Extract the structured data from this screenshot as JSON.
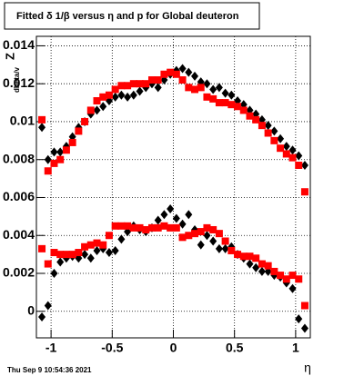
{
  "chart_data": {
    "type": "scatter",
    "title": "Fitted δ 1/β versus η and p for Global deuteron",
    "x_label": "η",
    "y_label": "Z",
    "y_label_sub": "dbeta/v",
    "footer": "Thu Sep  9 10:54:36 2021",
    "grid": true,
    "xlim": [
      -1.12,
      1.12
    ],
    "ylim": [
      -0.0014,
      0.0145
    ],
    "xticks": [
      -1,
      -0.5,
      0,
      0.5,
      1
    ],
    "yticks": [
      0,
      0.002,
      0.004,
      0.006,
      0.008,
      0.01,
      0.012,
      0.014
    ],
    "x": [
      -1.075,
      -1.025,
      -0.975,
      -0.925,
      -0.875,
      -0.825,
      -0.775,
      -0.725,
      -0.675,
      -0.625,
      -0.575,
      -0.525,
      -0.475,
      -0.425,
      -0.375,
      -0.325,
      -0.275,
      -0.225,
      -0.175,
      -0.125,
      -0.075,
      -0.025,
      0.025,
      0.075,
      0.125,
      0.175,
      0.225,
      0.275,
      0.325,
      0.375,
      0.425,
      0.475,
      0.525,
      0.575,
      0.625,
      0.675,
      0.725,
      0.775,
      0.825,
      0.875,
      0.925,
      0.975,
      1.025,
      1.075
    ],
    "series": [
      {
        "color": "#000000",
        "marker": "diamond",
        "values": [
          0.0097,
          0.008,
          0.0084,
          0.0084,
          0.0087,
          0.0092,
          0.0097,
          0.01,
          0.0104,
          0.0106,
          0.0108,
          0.0111,
          0.0113,
          0.0114,
          0.0113,
          0.0114,
          0.0116,
          0.0118,
          0.012,
          0.0118,
          0.0122,
          0.0125,
          0.0127,
          0.0128,
          0.0126,
          0.0124,
          0.0121,
          0.012,
          0.0117,
          0.0118,
          0.0115,
          0.0114,
          0.0111,
          0.0109,
          0.0106,
          0.0104,
          0.0101,
          0.0098,
          0.0095,
          0.0091,
          0.0087,
          0.0085,
          0.0082,
          0.0077
        ]
      },
      {
        "color": "#ff0000",
        "marker": "square",
        "values": [
          0.0101,
          0.0074,
          0.0078,
          0.008,
          0.0085,
          0.0089,
          0.0095,
          0.01,
          0.0106,
          0.0111,
          0.0113,
          0.0114,
          0.0117,
          0.0119,
          0.0119,
          0.012,
          0.012,
          0.012,
          0.0122,
          0.0122,
          0.0125,
          0.0126,
          0.0125,
          0.0122,
          0.0118,
          0.0117,
          0.0118,
          0.0113,
          0.0112,
          0.011,
          0.011,
          0.0109,
          0.0108,
          0.0106,
          0.0103,
          0.0101,
          0.0098,
          0.0094,
          0.009,
          0.0086,
          0.0083,
          0.0081,
          0.0077,
          0.0063
        ]
      },
      {
        "color": "#000000",
        "marker": "diamond",
        "values": [
          -0.0003,
          0.0003,
          0.002,
          0.0026,
          0.0028,
          0.0029,
          0.0028,
          0.003,
          0.0028,
          0.0032,
          0.0033,
          0.0031,
          0.0032,
          0.0038,
          0.0042,
          0.0045,
          0.0043,
          0.0042,
          0.0044,
          0.0048,
          0.0051,
          0.0054,
          0.0049,
          0.0046,
          0.0051,
          0.0043,
          0.0035,
          0.004,
          0.0037,
          0.0033,
          0.0033,
          0.0034,
          0.003,
          0.0028,
          0.0025,
          0.0023,
          0.0021,
          0.0021,
          0.0019,
          0.0018,
          0.0015,
          0.0012,
          -0.0004,
          -0.0009
        ]
      },
      {
        "color": "#ff0000",
        "marker": "square",
        "values": [
          0.0033,
          0.0025,
          0.0031,
          0.003,
          0.003,
          0.003,
          0.0031,
          0.0034,
          0.0035,
          0.0036,
          0.0035,
          0.004,
          0.0045,
          0.0045,
          0.0045,
          0.0044,
          0.0044,
          0.0043,
          0.0044,
          0.0044,
          0.0045,
          0.0044,
          0.0044,
          0.0039,
          0.004,
          0.0041,
          0.0042,
          0.0044,
          0.0043,
          0.0041,
          0.0037,
          0.0032,
          0.003,
          0.0029,
          0.0029,
          0.0028,
          0.0025,
          0.0024,
          0.0021,
          0.0019,
          0.0017,
          0.0019,
          0.0017,
          0.0003
        ]
      }
    ]
  }
}
